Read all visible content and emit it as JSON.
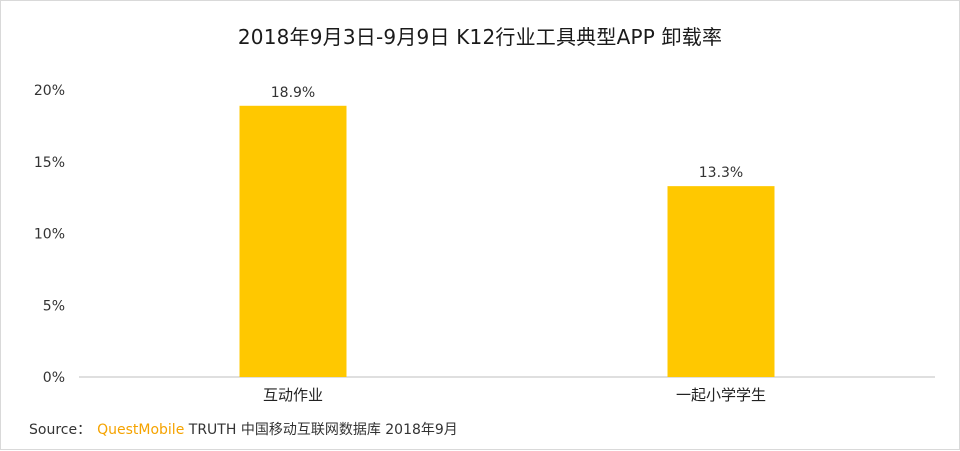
{
  "chart_data": {
    "type": "bar",
    "title": "2018年9月3日-9月9日 K12行业工具典型APP 卸载率",
    "categories": [
      "互动作业",
      "一起小学学生"
    ],
    "values": [
      18.9,
      13.3
    ],
    "value_labels": [
      "18.9%",
      "13.3%"
    ],
    "yticks": [
      "0%",
      "5%",
      "10%",
      "15%",
      "20%"
    ],
    "ytick_values": [
      0,
      5,
      10,
      15,
      20
    ],
    "ylim": [
      0,
      20
    ],
    "xlabel": "",
    "ylabel": "",
    "grid": false,
    "bar_color": "#FFC800"
  },
  "source": {
    "prefix": "Source：",
    "brand": "QuestMobile",
    "rest": "TRUTH 中国移动互联网数据库 2018年9月"
  }
}
